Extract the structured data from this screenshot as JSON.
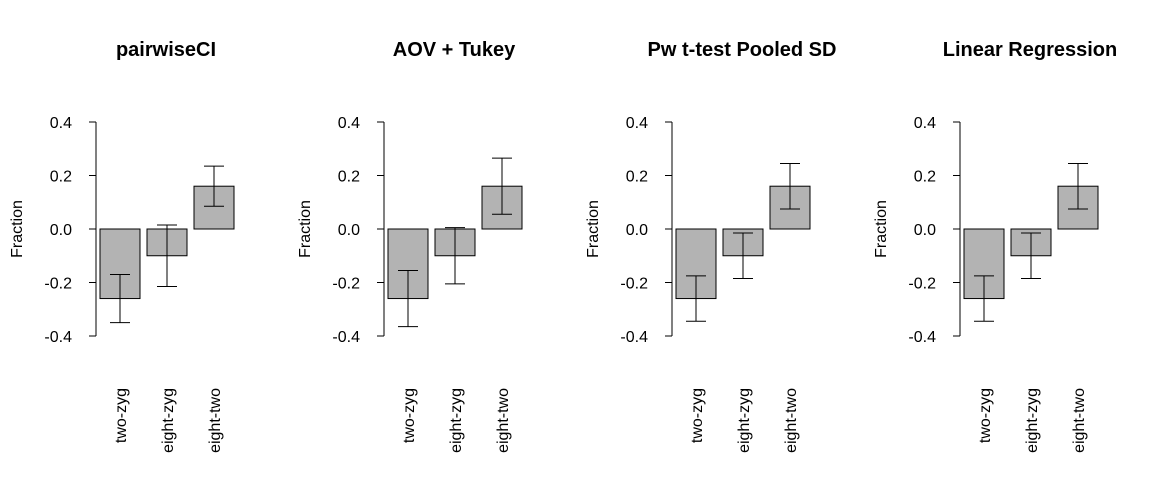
{
  "chart_data": [
    {
      "type": "bar",
      "title": "pairwiseCI",
      "ylabel": "Fraction",
      "ylim": [
        -0.4,
        0.4
      ],
      "yticks": [
        "-0.4",
        "-0.2",
        "0.0",
        "0.2",
        "0.4"
      ],
      "categories": [
        "two-zyg",
        "eight-zyg",
        "eight-two"
      ],
      "values": [
        -0.26,
        -0.1,
        0.16
      ],
      "lower": [
        -0.35,
        -0.215,
        0.085
      ],
      "upper": [
        -0.17,
        0.015,
        0.235
      ],
      "bar_color": "#b3b3b3"
    },
    {
      "type": "bar",
      "title": "AOV + Tukey",
      "ylabel": "Fraction",
      "ylim": [
        -0.4,
        0.4
      ],
      "yticks": [
        "-0.4",
        "-0.2",
        "0.0",
        "0.2",
        "0.4"
      ],
      "categories": [
        "two-zyg",
        "eight-zyg",
        "eight-two"
      ],
      "values": [
        -0.26,
        -0.1,
        0.16
      ],
      "lower": [
        -0.365,
        -0.205,
        0.055
      ],
      "upper": [
        -0.155,
        0.005,
        0.265
      ],
      "bar_color": "#b3b3b3"
    },
    {
      "type": "bar",
      "title": "Pw t-test Pooled SD",
      "ylabel": "Fraction",
      "ylim": [
        -0.4,
        0.4
      ],
      "yticks": [
        "-0.4",
        "-0.2",
        "0.0",
        "0.2",
        "0.4"
      ],
      "categories": [
        "two-zyg",
        "eight-zyg",
        "eight-two"
      ],
      "values": [
        -0.26,
        -0.1,
        0.16
      ],
      "lower": [
        -0.345,
        -0.185,
        0.075
      ],
      "upper": [
        -0.175,
        -0.015,
        0.245
      ],
      "bar_color": "#b3b3b3"
    },
    {
      "type": "bar",
      "title": "Linear Regression",
      "ylabel": "Fraction",
      "ylim": [
        -0.4,
        0.4
      ],
      "yticks": [
        "-0.4",
        "-0.2",
        "0.0",
        "0.2",
        "0.4"
      ],
      "categories": [
        "two-zyg",
        "eight-zyg",
        "eight-two"
      ],
      "values": [
        -0.26,
        -0.1,
        0.16
      ],
      "lower": [
        -0.345,
        -0.185,
        0.075
      ],
      "upper": [
        -0.175,
        -0.015,
        0.245
      ],
      "bar_color": "#b3b3b3"
    }
  ]
}
